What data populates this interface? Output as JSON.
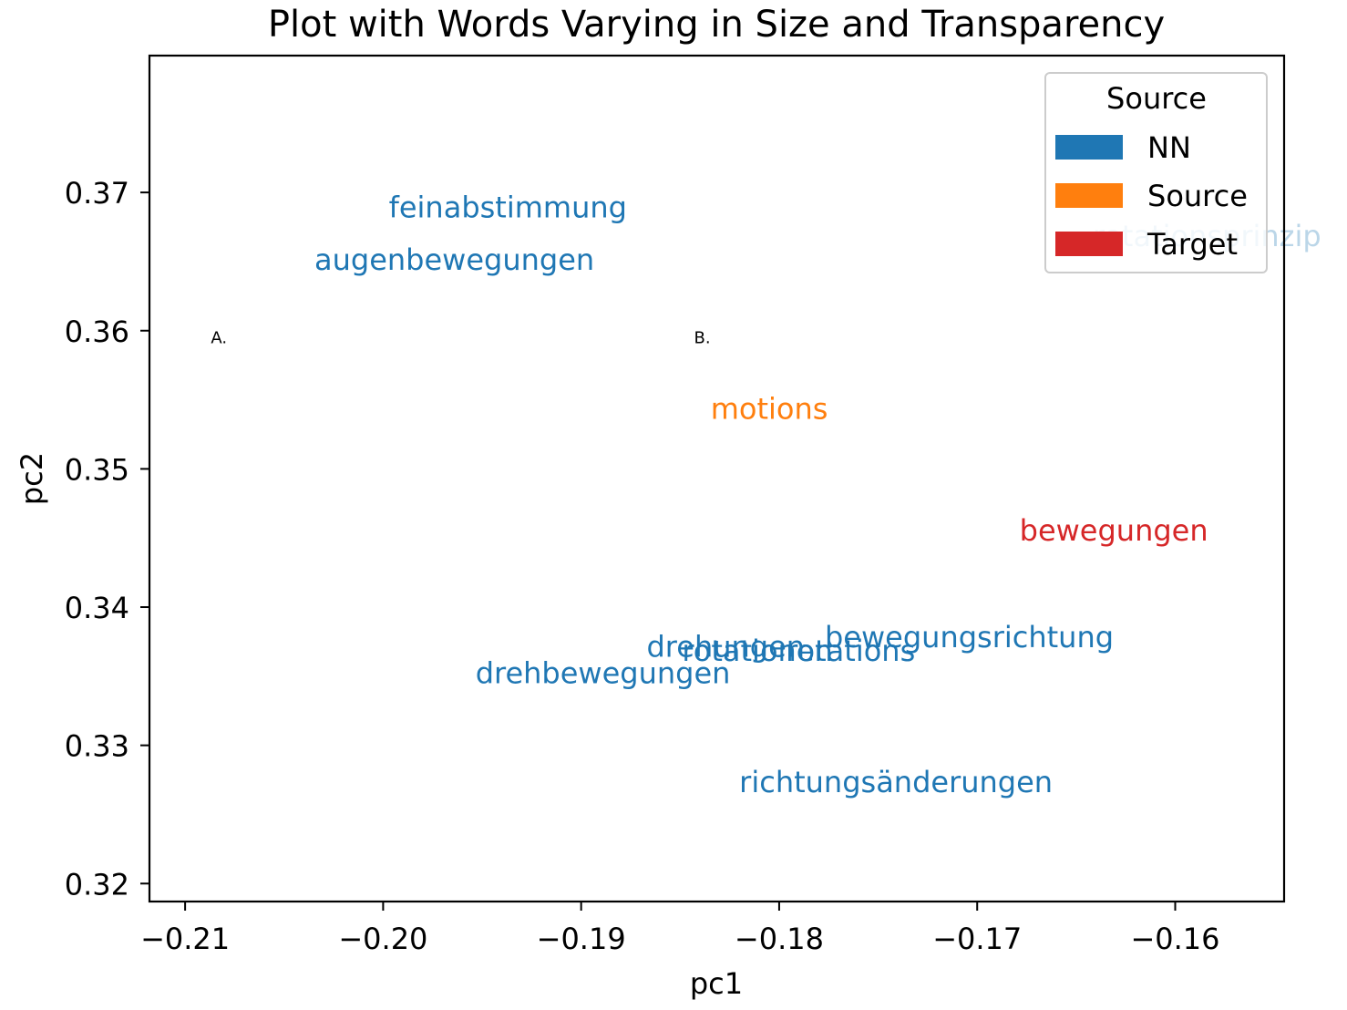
{
  "chart_data": {
    "type": "scatter",
    "title": "Plot with Words Varying in Size and Transparency",
    "xlabel": "pc1",
    "ylabel": "pc2",
    "xlim": [
      -0.2118,
      -0.1545
    ],
    "ylim": [
      0.3187,
      0.3799
    ],
    "xticks": [
      {
        "value": -0.21,
        "label": "−0.21"
      },
      {
        "value": -0.2,
        "label": "−0.20"
      },
      {
        "value": -0.19,
        "label": "−0.19"
      },
      {
        "value": -0.18,
        "label": "−0.18"
      },
      {
        "value": -0.17,
        "label": "−0.17"
      },
      {
        "value": -0.16,
        "label": "−0.16"
      }
    ],
    "yticks": [
      {
        "value": 0.32,
        "label": "0.32"
      },
      {
        "value": 0.33,
        "label": "0.33"
      },
      {
        "value": 0.34,
        "label": "0.34"
      },
      {
        "value": 0.35,
        "label": "0.35"
      },
      {
        "value": 0.36,
        "label": "0.36"
      },
      {
        "value": 0.37,
        "label": "0.37"
      }
    ],
    "grid": false,
    "legend": {
      "title": "Source",
      "position": "upper right",
      "entries": [
        {
          "label": "NN",
          "color": "#1f77b4"
        },
        {
          "label": "Source",
          "color": "#ff7f0e"
        },
        {
          "label": "Target",
          "color": "#d62728"
        }
      ]
    },
    "colors": {
      "NN": "#1f77b4",
      "Source": "#ff7f0e",
      "Target": "#d62728"
    },
    "words": [
      {
        "text": "feinabstimmung",
        "x": -0.1937,
        "y": 0.3688,
        "group": "NN",
        "alpha": 1.0
      },
      {
        "text": "augenbewegungen",
        "x": -0.1964,
        "y": 0.365,
        "group": "NN",
        "alpha": 1.0
      },
      {
        "text": "rotationsprinzip",
        "x": -0.1584,
        "y": 0.3667,
        "group": "NN",
        "alpha": 0.3
      },
      {
        "text": "motions",
        "x": -0.1805,
        "y": 0.3542,
        "group": "Source",
        "alpha": 1.0
      },
      {
        "text": "bewegungen",
        "x": -0.1631,
        "y": 0.3454,
        "group": "Target",
        "alpha": 1.0
      },
      {
        "text": "bewegungsrichtung",
        "x": -0.1704,
        "y": 0.3377,
        "group": "NN",
        "alpha": 1.0
      },
      {
        "text": "drehungen",
        "x": -0.1827,
        "y": 0.337,
        "group": "NN",
        "alpha": 1.0
      },
      {
        "text": "rotationen",
        "x": -0.1811,
        "y": 0.3367,
        "group": "NN",
        "alpha": 1.0
      },
      {
        "text": "rotations",
        "x": -0.1764,
        "y": 0.3367,
        "group": "NN",
        "alpha": 1.0
      },
      {
        "text": "drehbewegungen",
        "x": -0.1889,
        "y": 0.3351,
        "group": "NN",
        "alpha": 1.0
      },
      {
        "text": "richtungsänderungen",
        "x": -0.1741,
        "y": 0.3272,
        "group": "NN",
        "alpha": 1.0
      }
    ],
    "annotations": [
      {
        "text": "A.",
        "x": -0.2087,
        "y": 0.3597
      },
      {
        "text": "B.",
        "x": -0.1843,
        "y": 0.3597
      }
    ]
  }
}
